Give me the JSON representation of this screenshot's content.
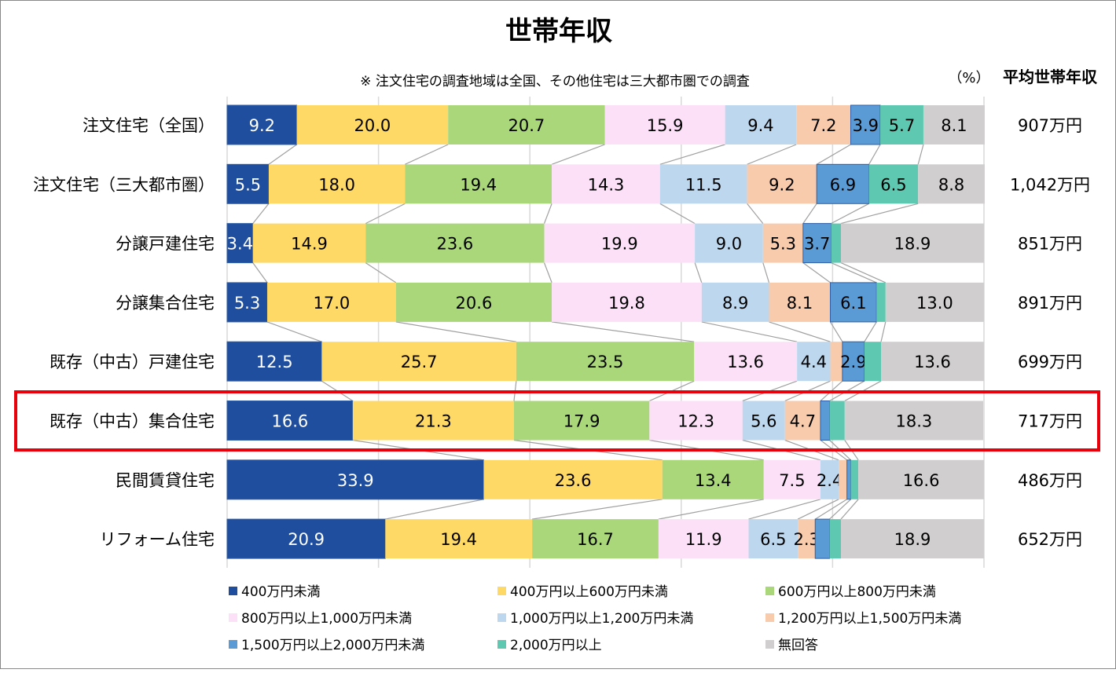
{
  "chart_data": {
    "type": "bar",
    "orientation": "horizontal",
    "stacked": "100%",
    "title": "世帯年収",
    "note": "※ 注文住宅の調査地域は全国、その他住宅は三大都市圏での調査",
    "unit_label": "（%）",
    "extra_column_header": "平均世帯年収",
    "xlim": [
      0,
      100
    ],
    "grid": true,
    "legend_position": "bottom",
    "highlighted_category": "既存（中古）集合住宅",
    "highlight_color": "#e8000b",
    "categories": [
      "注文住宅（全国）",
      "注文住宅（三大都市圏）",
      "分譲戸建住宅",
      "分譲集合住宅",
      "既存（中古）戸建住宅",
      "既存（中古）集合住宅",
      "民間賃貸住宅",
      "リフォーム住宅"
    ],
    "averages": [
      "907万円",
      "1,042万円",
      "851万円",
      "891万円",
      "699万円",
      "717万円",
      "486万円",
      "652万円"
    ],
    "series": [
      {
        "name": "400万円未満",
        "color": "#1f4e9f",
        "values": [
          9.2,
          5.5,
          3.4,
          5.3,
          12.5,
          16.6,
          33.9,
          20.9
        ],
        "labels": [
          "9.2",
          "5.5",
          "3.4",
          "5.3",
          "12.5",
          "16.6",
          "33.9",
          "20.9"
        ]
      },
      {
        "name": "400万円以上600万円未満",
        "color": "#ffd966",
        "values": [
          20.0,
          18.0,
          14.9,
          17.0,
          25.7,
          21.3,
          23.6,
          19.4
        ],
        "labels": [
          "20.0",
          "18.0",
          "14.9",
          "17.0",
          "25.7",
          "21.3",
          "23.6",
          "19.4"
        ]
      },
      {
        "name": "600万円以上800万円未満",
        "color": "#a9d77a",
        "values": [
          20.7,
          19.4,
          23.6,
          20.6,
          23.5,
          17.9,
          13.4,
          16.7
        ],
        "labels": [
          "20.7",
          "19.4",
          "23.6",
          "20.6",
          "23.5",
          "17.9",
          "13.4",
          "16.7"
        ]
      },
      {
        "name": "800万円以上1,000万円未満",
        "color": "#fce0f8",
        "values": [
          15.9,
          14.3,
          19.9,
          19.8,
          13.6,
          12.3,
          7.5,
          11.9
        ],
        "labels": [
          "15.9",
          "14.3",
          "19.9",
          "19.8",
          "13.6",
          "12.3",
          "7.5",
          "11.9"
        ]
      },
      {
        "name": "1,000万円以上1,200万円未満",
        "color": "#bdd7ee",
        "values": [
          9.4,
          11.5,
          9.0,
          8.9,
          4.4,
          5.6,
          2.4,
          6.5
        ],
        "labels": [
          "9.4",
          "11.5",
          "9.0",
          "8.9",
          "4.4",
          "5.6",
          "2.4",
          "6.5"
        ]
      },
      {
        "name": "1,200万円以上1,500万円未満",
        "color": "#f8cbad",
        "values": [
          7.2,
          9.2,
          5.3,
          8.1,
          1.6,
          4.7,
          1.1,
          2.3
        ],
        "labels": [
          "7.2",
          "9.2",
          "5.3",
          "8.1",
          "",
          "4.7",
          "",
          "2.3"
        ]
      },
      {
        "name": "1,500万円以上2,000万円未満",
        "color": "#5b9bd5",
        "values": [
          3.9,
          6.9,
          3.7,
          6.1,
          2.9,
          1.2,
          0.5,
          1.9
        ],
        "labels": [
          "3.9",
          "6.9",
          "3.7",
          "6.1",
          "2.9",
          "",
          "",
          ""
        ]
      },
      {
        "name": "2,000万円以上",
        "color": "#5fc8b0",
        "values": [
          5.7,
          6.5,
          1.3,
          1.2,
          2.2,
          2.0,
          1.0,
          1.5
        ],
        "labels": [
          "5.7",
          "6.5",
          "",
          "",
          "",
          "",
          "",
          ""
        ]
      },
      {
        "name": "無回答",
        "color": "#d0cece",
        "values": [
          8.1,
          8.8,
          18.9,
          13.0,
          13.6,
          18.3,
          16.6,
          18.9
        ],
        "labels": [
          "8.1",
          "8.8",
          "18.9",
          "13.0",
          "13.6",
          "18.3",
          "16.6",
          "18.9"
        ]
      }
    ]
  }
}
